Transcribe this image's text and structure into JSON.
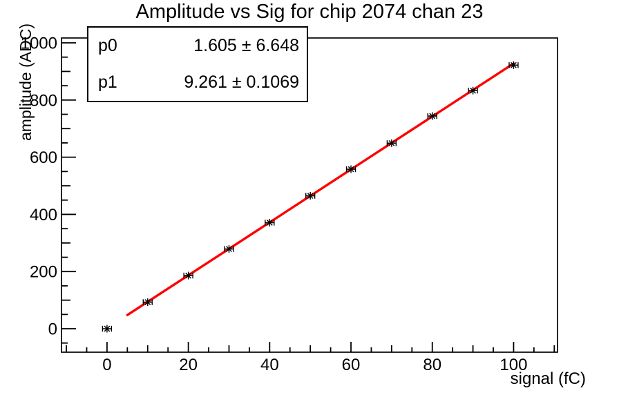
{
  "title": "Amplitude vs Sig for chip 2074 chan 23",
  "stats_box": {
    "rows": [
      {
        "label": "p0",
        "value": "1.605 ± 6.648"
      },
      {
        "label": "p1",
        "value": "9.261 ± 0.1069"
      }
    ]
  },
  "chart_data": {
    "type": "scatter",
    "title": "Amplitude vs Sig for chip 2074 chan 23",
    "xlabel": "signal (fC)",
    "ylabel": "amplitude (ADC)",
    "x": [
      0,
      10,
      20,
      30,
      40,
      50,
      60,
      70,
      80,
      90,
      100
    ],
    "y": [
      0,
      93,
      186,
      279,
      371,
      465,
      558,
      649,
      744,
      833,
      922
    ],
    "xerr": 1.1,
    "marker": "asterisk-with-x-error-bars",
    "marker_color": "#000000",
    "fit": {
      "name": "pol1",
      "p0": 1.605,
      "p1": 9.261,
      "x_range": [
        5,
        100
      ],
      "color": "#ff0000"
    },
    "xlim": [
      -11.2,
      110.8
    ],
    "ylim": [
      -82,
      1017
    ],
    "x_tick_labels": [
      0,
      20,
      40,
      60,
      80,
      100
    ],
    "y_tick_labels": [
      0,
      200,
      400,
      600,
      800,
      1000
    ],
    "x_minor_step": 5,
    "y_minor_step": 50,
    "grid": false,
    "legend_position": "none"
  },
  "colors": {
    "background": "#ffffff",
    "axis": "#000000",
    "fit_line": "#ff0000"
  }
}
